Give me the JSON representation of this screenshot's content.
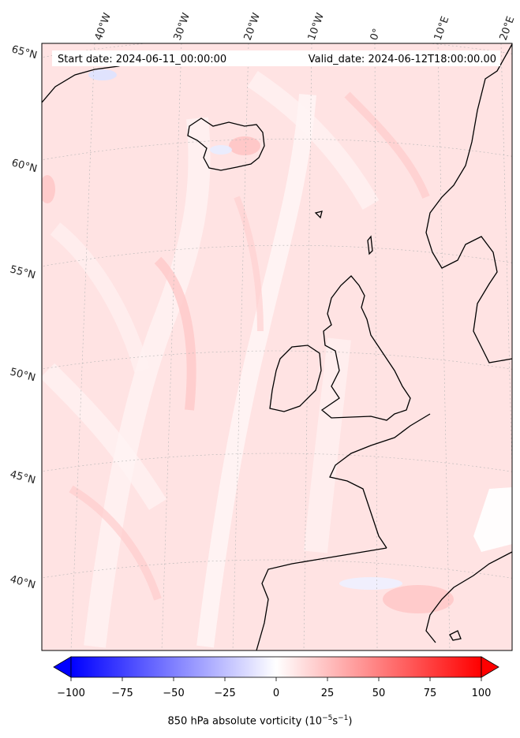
{
  "header": {
    "start_date": "Start date: 2024-06-11_00:00:00",
    "valid_date": "Valid_date: 2024-06-12T18:00:00.00"
  },
  "lon_labels": [
    "40°W",
    "30°W",
    "20°W",
    "10°W",
    "0°",
    "10°E",
    "20°E"
  ],
  "lat_labels": [
    "65°N",
    "60°N",
    "55°N",
    "50°N",
    "45°N",
    "40°N"
  ],
  "colorbar": {
    "min": -100,
    "max": 100,
    "ticks": [
      "−100",
      "−75",
      "−50",
      "−25",
      "0",
      "25",
      "50",
      "75",
      "100"
    ],
    "title_prefix": "850 hPa absolute vorticity (10",
    "title_exp1": "−5",
    "title_mid": "s",
    "title_exp2": "−1",
    "title_suffix": ")",
    "colors": {
      "negative": "#0000ff",
      "neutral": "#ffffff",
      "positive": "#ff0000"
    },
    "extend": "both"
  },
  "map": {
    "field": "850 hPa absolute vorticity",
    "region": "North Atlantic and Western Europe",
    "coastline_color": "#000000",
    "gridline_color": "#b0b0b0",
    "background_tint": "#ffe6e6"
  }
}
